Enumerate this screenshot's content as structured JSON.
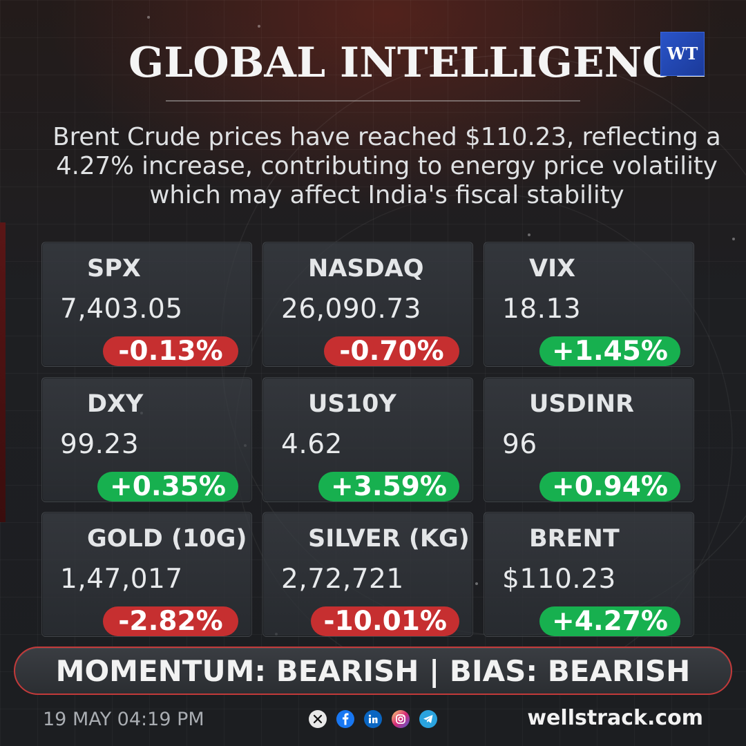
{
  "header": {
    "title": "GLOBAL INTELLIGENCE",
    "logo_text": "WT",
    "headline": "Brent Crude prices have reached $110.23, reflecting a 4.27% increase, contributing to energy price volatility which may affect India's fiscal stability"
  },
  "cards": [
    {
      "name": "SPX",
      "value": "7,403.05",
      "change": "-0.13%",
      "direction": "down"
    },
    {
      "name": "NASDAQ",
      "value": "26,090.73",
      "change": "-0.70%",
      "direction": "down"
    },
    {
      "name": "VIX",
      "value": "18.13",
      "change": "+1.45%",
      "direction": "up"
    },
    {
      "name": "DXY",
      "value": "99.23",
      "change": "+0.35%",
      "direction": "up"
    },
    {
      "name": "US10Y",
      "value": "4.62",
      "change": "+3.59%",
      "direction": "up"
    },
    {
      "name": "USDINR",
      "value": "96",
      "change": "+0.94%",
      "direction": "up"
    },
    {
      "name": "GOLD (10G)",
      "value": "1,47,017",
      "change": "-2.82%",
      "direction": "down"
    },
    {
      "name": "SILVER (KG)",
      "value": "2,72,721",
      "change": "-10.01%",
      "direction": "down"
    },
    {
      "name": "BRENT",
      "value": "$110.23",
      "change": "+4.27%",
      "direction": "up"
    }
  ],
  "momentum": {
    "text": "MOMENTUM: BEARISH | BIAS: BEARISH"
  },
  "footer": {
    "timestamp": "19 MAY 04:19 PM",
    "socials": [
      "x-icon",
      "facebook-icon",
      "linkedin-icon",
      "instagram-icon",
      "telegram-icon"
    ],
    "website": "wellstrack.com"
  },
  "colors": {
    "negative": "#c62f30",
    "positive": "#17b04f",
    "accent_border": "#c33a3a",
    "logo_blue": "#2a54c8"
  }
}
